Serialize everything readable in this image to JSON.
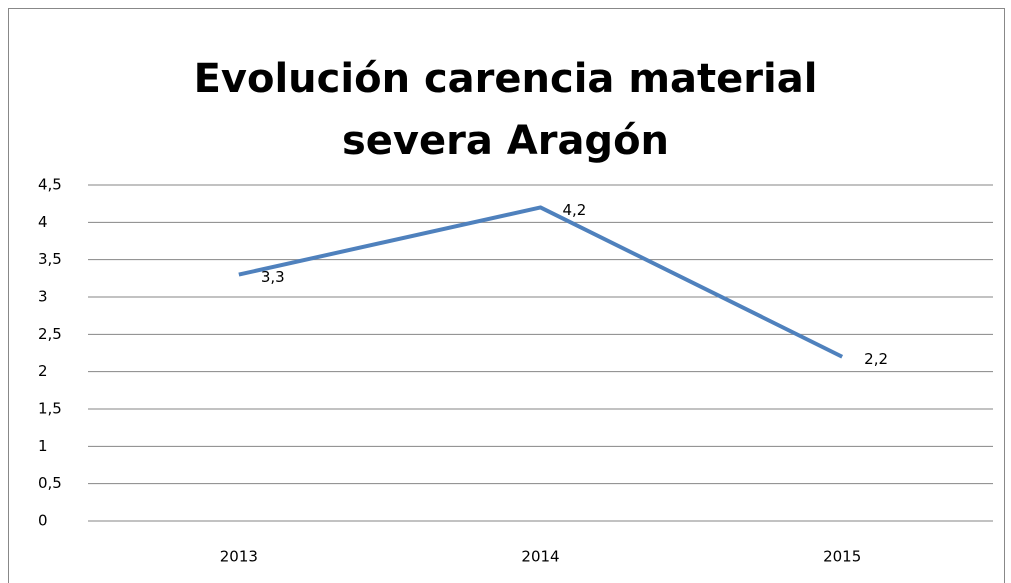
{
  "chart_data": {
    "type": "line",
    "title": "Evolución carencia material severa Aragón",
    "categories": [
      "2013",
      "2014",
      "2015"
    ],
    "values": [
      3.3,
      4.2,
      2.2
    ],
    "value_labels": [
      "3,3",
      "4,2",
      "2,2"
    ],
    "color": "#4f81bd",
    "ylim": [
      0,
      4.5
    ],
    "yticks": [
      0,
      {
        "value": 0.5,
        "label": "0,5"
      },
      1,
      {
        "value": 1.5,
        "label": "1,5"
      },
      2,
      {
        "value": 2.5,
        "label": "2,5"
      },
      3,
      {
        "value": 3.5,
        "label": "3,5"
      },
      4,
      {
        "value": 4.5,
        "label": "4,5"
      }
    ],
    "grid": true
  }
}
